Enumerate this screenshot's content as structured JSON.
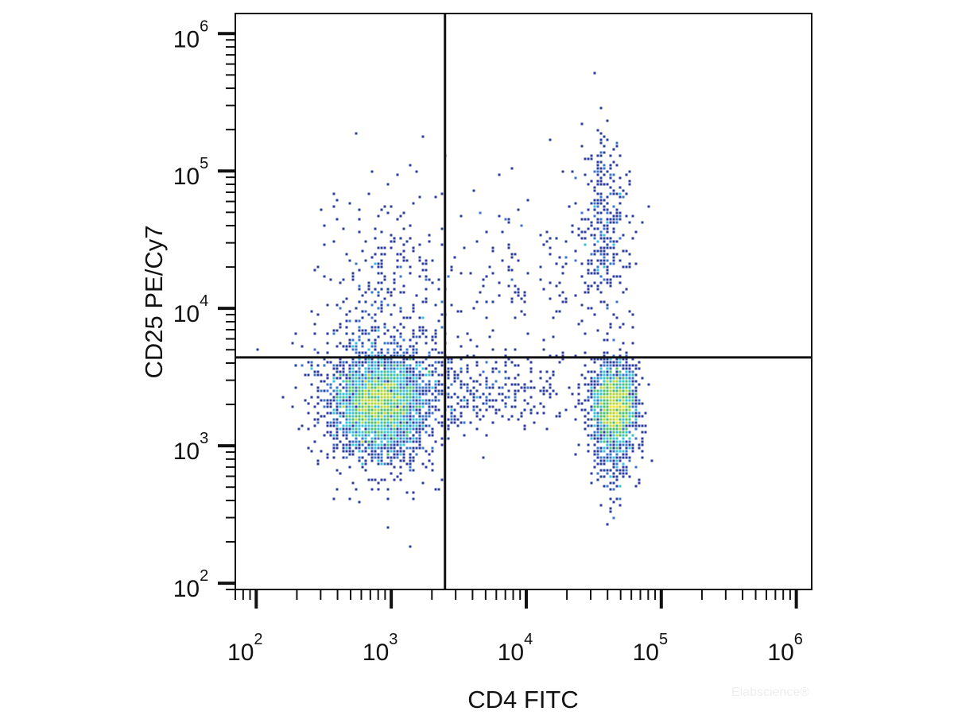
{
  "chart_data": {
    "type": "scatter",
    "subtype": "flow-cytometry-density-dot-plot",
    "xlabel": "CD4 FITC",
    "ylabel": "CD25 PE/Cy7",
    "x_scale": "log",
    "y_scale": "log",
    "xlim": [
      70,
      1300000
    ],
    "ylim": [
      90,
      1400000
    ],
    "x_ticks": [
      {
        "value": 100,
        "base": "10",
        "exp": "2"
      },
      {
        "value": 1000,
        "base": "10",
        "exp": "3"
      },
      {
        "value": 10000,
        "base": "10",
        "exp": "4"
      },
      {
        "value": 100000,
        "base": "10",
        "exp": "5"
      },
      {
        "value": 1000000,
        "base": "10",
        "exp": "6"
      }
    ],
    "y_ticks": [
      {
        "value": 100,
        "base": "10",
        "exp": "2"
      },
      {
        "value": 1000,
        "base": "10",
        "exp": "3"
      },
      {
        "value": 10000,
        "base": "10",
        "exp": "4"
      },
      {
        "value": 100000,
        "base": "10",
        "exp": "5"
      },
      {
        "value": 1000000,
        "base": "10",
        "exp": "6"
      }
    ],
    "quadrant_gates": {
      "x": 2500,
      "y": 4400
    },
    "populations": [
      {
        "x_center": 800,
        "y_center": 2000,
        "note": "CD4- CD25low cluster (densest)"
      },
      {
        "x_center": 45000,
        "y_center": 2000,
        "note": "CD4+ CD25low cluster"
      },
      {
        "x_center": 38000,
        "y_center": 40000,
        "note": "CD4+ CD25+ tail"
      }
    ],
    "density_colors": [
      "#2c3e9c",
      "#3a74c8",
      "#35c2d8",
      "#4bbf6b",
      "#b5d334",
      "#f2e021",
      "#f08a1e",
      "#e31a1c"
    ],
    "grid": false,
    "legend": "none"
  },
  "watermark": "Elabscience®"
}
